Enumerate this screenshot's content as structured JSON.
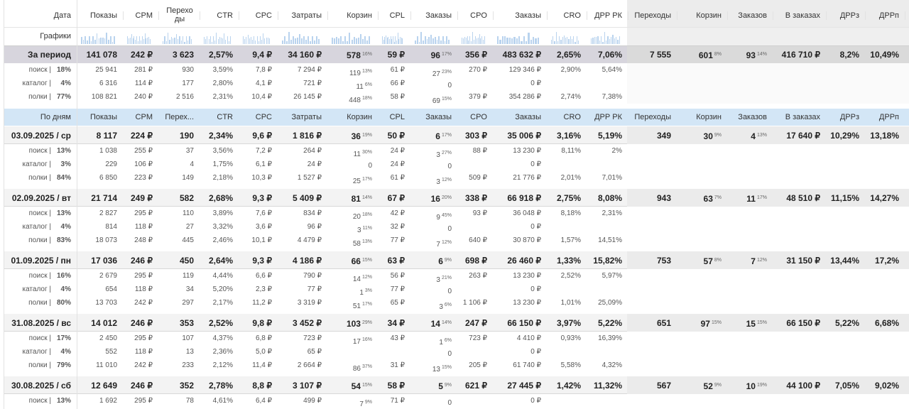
{
  "header": {
    "columns": [
      "Дата",
      "Показы",
      "CPM",
      "Переходы",
      "CTR",
      "CPC",
      "Затраты",
      "Корзин",
      "CPL",
      "Заказы",
      "CPO",
      "Заказы",
      "CRO",
      "ДРР РК",
      "Переходы",
      "Корзин",
      "Заказов",
      "В заказах",
      "ДРРз",
      "ДРРп"
    ],
    "charts_label": "Графики"
  },
  "total": {
    "label": "За период",
    "cells": [
      "141 078",
      "242 ₽",
      "3 623",
      "2,57%",
      "9,4 ₽",
      "34 160 ₽",
      {
        "v": "578",
        "sup": "16%"
      },
      "59 ₽",
      {
        "v": "96",
        "sup": "17%"
      },
      "356 ₽",
      "483 632 ₽",
      "2,65%",
      "7,06%",
      "7 555",
      {
        "v": "601",
        "sup": "8%"
      },
      {
        "v": "93",
        "sup": "14%"
      },
      "416 710 ₽",
      "8,2%",
      "10,49%"
    ],
    "sub": [
      {
        "label": "поиск |",
        "share": "18%",
        "cells": [
          "25 941",
          "281 ₽",
          "930",
          "3,59%",
          "7,8 ₽",
          "7 294 ₽",
          {
            "v": "119",
            "sup": "13%"
          },
          "61 ₽",
          {
            "v": "27",
            "sup": "23%"
          },
          "270 ₽",
          "129 346 ₽",
          "2,90%",
          "5,64%"
        ]
      },
      {
        "label": "каталог |",
        "share": "4%",
        "cells": [
          "6 316",
          "114 ₽",
          "177",
          "2,80%",
          "4,1 ₽",
          "721 ₽",
          {
            "v": "11",
            "sup": "6%"
          },
          "66 ₽",
          "0",
          null,
          "0 ₽",
          null,
          null
        ]
      },
      {
        "label": "полки |",
        "share": "77%",
        "cells": [
          "108 821",
          "240 ₽",
          "2 516",
          "2,31%",
          "10,4 ₽",
          "26 145 ₽",
          {
            "v": "448",
            "sup": "18%"
          },
          "58 ₽",
          {
            "v": "69",
            "sup": "15%"
          },
          "379 ₽",
          "354 286 ₽",
          "2,74%",
          "7,38%"
        ]
      }
    ]
  },
  "days_header": [
    "По дням",
    "Показы",
    "CPM",
    "Перех...",
    "CTR",
    "CPC",
    "Затраты",
    "Корзин",
    "CPL",
    "Заказы",
    "CPO",
    "Заказы",
    "CRO",
    "ДРР РК",
    "Переходы",
    "Корзин",
    "Заказов",
    "В заказах",
    "ДРРз",
    "ДРРп"
  ],
  "days": [
    {
      "label": "03.09.2025 / ср",
      "cells": [
        "8 117",
        "224 ₽",
        "190",
        "2,34%",
        "9,6 ₽",
        "1 816 ₽",
        {
          "v": "36",
          "sup": "19%"
        },
        "50 ₽",
        {
          "v": "6",
          "sup": "17%"
        },
        "303 ₽",
        "35 006 ₽",
        "3,16%",
        "5,19%",
        "349",
        {
          "v": "30",
          "sup": "9%"
        },
        {
          "v": "4",
          "sup": "13%"
        },
        "17 640 ₽",
        "10,29%",
        "13,18%"
      ],
      "sub": [
        {
          "label": "поиск |",
          "share": "13%",
          "cells": [
            "1 038",
            "255 ₽",
            "37",
            "3,56%",
            "7,2 ₽",
            "264 ₽",
            {
              "v": "11",
              "sup": "30%"
            },
            "24 ₽",
            {
              "v": "3",
              "sup": "27%"
            },
            "88 ₽",
            "13 230 ₽",
            "8,11%",
            "2%"
          ]
        },
        {
          "label": "каталог |",
          "share": "3%",
          "cells": [
            "229",
            "106 ₽",
            "4",
            "1,75%",
            "6,1 ₽",
            "24 ₽",
            "0",
            "24 ₽",
            "0",
            null,
            "0 ₽",
            null,
            null
          ]
        },
        {
          "label": "полки |",
          "share": "84%",
          "cells": [
            "6 850",
            "223 ₽",
            "149",
            "2,18%",
            "10,3 ₽",
            "1 527 ₽",
            {
              "v": "25",
              "sup": "17%"
            },
            "61 ₽",
            {
              "v": "3",
              "sup": "12%"
            },
            "509 ₽",
            "21 776 ₽",
            "2,01%",
            "7,01%"
          ]
        }
      ]
    },
    {
      "label": "02.09.2025 / вт",
      "cells": [
        "21 714",
        "249 ₽",
        "582",
        "2,68%",
        "9,3 ₽",
        "5 409 ₽",
        {
          "v": "81",
          "sup": "14%"
        },
        "67 ₽",
        {
          "v": "16",
          "sup": "20%"
        },
        "338 ₽",
        "66 918 ₽",
        "2,75%",
        "8,08%",
        "943",
        {
          "v": "63",
          "sup": "7%"
        },
        {
          "v": "11",
          "sup": "17%"
        },
        "48 510 ₽",
        "11,15%",
        "14,27%"
      ],
      "sub": [
        {
          "label": "поиск |",
          "share": "13%",
          "cells": [
            "2 827",
            "295 ₽",
            "110",
            "3,89%",
            "7,6 ₽",
            "834 ₽",
            {
              "v": "20",
              "sup": "18%"
            },
            "42 ₽",
            {
              "v": "9",
              "sup": "45%"
            },
            "93 ₽",
            "36 048 ₽",
            "8,18%",
            "2,31%"
          ]
        },
        {
          "label": "каталог |",
          "share": "4%",
          "cells": [
            "814",
            "118 ₽",
            "27",
            "3,32%",
            "3,6 ₽",
            "96 ₽",
            {
              "v": "3",
              "sup": "11%"
            },
            "32 ₽",
            "0",
            null,
            "0 ₽",
            null,
            null
          ]
        },
        {
          "label": "полки |",
          "share": "83%",
          "cells": [
            "18 073",
            "248 ₽",
            "445",
            "2,46%",
            "10,1 ₽",
            "4 479 ₽",
            {
              "v": "58",
              "sup": "13%"
            },
            "77 ₽",
            {
              "v": "7",
              "sup": "12%"
            },
            "640 ₽",
            "30 870 ₽",
            "1,57%",
            "14,51%"
          ]
        }
      ]
    },
    {
      "label": "01.09.2025 / пн",
      "cells": [
        "17 036",
        "246 ₽",
        "450",
        "2,64%",
        "9,3 ₽",
        "4 186 ₽",
        {
          "v": "66",
          "sup": "15%"
        },
        "63 ₽",
        {
          "v": "6",
          "sup": "9%"
        },
        "698 ₽",
        "26 460 ₽",
        "1,33%",
        "15,82%",
        "753",
        {
          "v": "57",
          "sup": "8%"
        },
        {
          "v": "7",
          "sup": "12%"
        },
        "31 150 ₽",
        "13,44%",
        "17,2%"
      ],
      "sub": [
        {
          "label": "поиск |",
          "share": "16%",
          "cells": [
            "2 679",
            "295 ₽",
            "119",
            "4,44%",
            "6,6 ₽",
            "790 ₽",
            {
              "v": "14",
              "sup": "12%"
            },
            "56 ₽",
            {
              "v": "3",
              "sup": "21%"
            },
            "263 ₽",
            "13 230 ₽",
            "2,52%",
            "5,97%"
          ]
        },
        {
          "label": "каталог |",
          "share": "4%",
          "cells": [
            "654",
            "118 ₽",
            "34",
            "5,20%",
            "2,3 ₽",
            "77 ₽",
            {
              "v": "1",
              "sup": "3%"
            },
            "77 ₽",
            "0",
            null,
            "0 ₽",
            null,
            null
          ]
        },
        {
          "label": "полки |",
          "share": "80%",
          "cells": [
            "13 703",
            "242 ₽",
            "297",
            "2,17%",
            "11,2 ₽",
            "3 319 ₽",
            {
              "v": "51",
              "sup": "17%"
            },
            "65 ₽",
            {
              "v": "3",
              "sup": "6%"
            },
            "1 106 ₽",
            "13 230 ₽",
            "1,01%",
            "25,09%"
          ]
        }
      ]
    },
    {
      "label": "31.08.2025 / вс",
      "cells": [
        "14 012",
        "246 ₽",
        "353",
        "2,52%",
        "9,8 ₽",
        "3 452 ₽",
        {
          "v": "103",
          "sup": "29%"
        },
        "34 ₽",
        {
          "v": "14",
          "sup": "14%"
        },
        "247 ₽",
        "66 150 ₽",
        "3,97%",
        "5,22%",
        "651",
        {
          "v": "97",
          "sup": "15%"
        },
        {
          "v": "15",
          "sup": "15%"
        },
        "66 150 ₽",
        "5,22%",
        "6,68%"
      ],
      "sub": [
        {
          "label": "поиск |",
          "share": "17%",
          "cells": [
            "2 450",
            "295 ₽",
            "107",
            "4,37%",
            "6,8 ₽",
            "723 ₽",
            {
              "v": "17",
              "sup": "16%"
            },
            "43 ₽",
            {
              "v": "1",
              "sup": "6%"
            },
            "723 ₽",
            "4 410 ₽",
            "0,93%",
            "16,39%"
          ]
        },
        {
          "label": "каталог |",
          "share": "4%",
          "cells": [
            "552",
            "118 ₽",
            "13",
            "2,36%",
            "5,0 ₽",
            "65 ₽",
            null,
            null,
            "0",
            null,
            "0 ₽",
            null,
            null
          ]
        },
        {
          "label": "полки |",
          "share": "79%",
          "cells": [
            "11 010",
            "242 ₽",
            "233",
            "2,12%",
            "11,4 ₽",
            "2 664 ₽",
            {
              "v": "86",
              "sup": "37%"
            },
            "31 ₽",
            {
              "v": "13",
              "sup": "15%"
            },
            "205 ₽",
            "61 740 ₽",
            "5,58%",
            "4,32%"
          ]
        }
      ]
    },
    {
      "label": "30.08.2025 / сб",
      "cells": [
        "12 649",
        "246 ₽",
        "352",
        "2,78%",
        "8,8 ₽",
        "3 107 ₽",
        {
          "v": "54",
          "sup": "15%"
        },
        "58 ₽",
        {
          "v": "5",
          "sup": "9%"
        },
        "621 ₽",
        "27 445 ₽",
        "1,42%",
        "11,32%",
        "567",
        {
          "v": "52",
          "sup": "9%"
        },
        {
          "v": "10",
          "sup": "19%"
        },
        "44 100 ₽",
        "7,05%",
        "9,02%"
      ],
      "sub": [
        {
          "label": "поиск |",
          "share": "13%",
          "cells": [
            "1 692",
            "295 ₽",
            "78",
            "4,61%",
            "6,4 ₽",
            "499 ₽",
            {
              "v": "7",
              "sup": "9%"
            },
            "71 ₽",
            "0",
            null,
            "0 ₽",
            null,
            null
          ]
        }
      ]
    }
  ]
}
